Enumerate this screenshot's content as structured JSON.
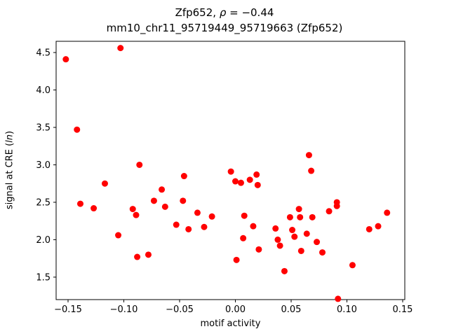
{
  "figure": {
    "title": {
      "prefix": "Zfp652, ",
      "rho": "ρ",
      "suffix": " = −0.44"
    },
    "subtitle": "mm10_chr11_95719449_95719663 (Zfp652)",
    "xlabel": "motif activity",
    "ylabel": {
      "prefix": "signal at CRE (",
      "italic": "ln",
      "suffix": ")"
    }
  },
  "chart_data": {
    "type": "scatter",
    "title": "Zfp652, ρ = −0.44",
    "subtitle": "mm10_chr11_95719449_95719663 (Zfp652)",
    "xlabel": "motif activity",
    "ylabel": "signal at CRE (ln)",
    "legend": null,
    "grid": false,
    "marker_color": "#ff0000",
    "marker_radius": 4.5,
    "xlim": [
      -0.1607,
      0.1519
    ],
    "ylim": [
      1.2,
      4.65
    ],
    "xticks": [
      -0.15,
      -0.1,
      -0.05,
      0.0,
      0.05,
      0.1,
      0.15
    ],
    "yticks": [
      1.5,
      2.0,
      2.5,
      3.0,
      3.5,
      4.0,
      4.5
    ],
    "points": [
      [
        -0.152,
        4.41
      ],
      [
        -0.142,
        3.47
      ],
      [
        -0.103,
        4.56
      ],
      [
        -0.139,
        2.48
      ],
      [
        -0.127,
        2.42
      ],
      [
        -0.117,
        2.75
      ],
      [
        -0.105,
        2.06
      ],
      [
        -0.092,
        2.41
      ],
      [
        -0.089,
        2.33
      ],
      [
        -0.086,
        3.0
      ],
      [
        -0.088,
        1.77
      ],
      [
        -0.078,
        1.8
      ],
      [
        -0.073,
        2.52
      ],
      [
        -0.066,
        2.67
      ],
      [
        -0.063,
        2.44
      ],
      [
        -0.053,
        2.2
      ],
      [
        -0.047,
        2.52
      ],
      [
        -0.046,
        2.85
      ],
      [
        -0.042,
        2.14
      ],
      [
        -0.034,
        2.36
      ],
      [
        -0.028,
        2.17
      ],
      [
        -0.021,
        2.31
      ],
      [
        -0.004,
        2.91
      ],
      [
        0.0,
        2.78
      ],
      [
        0.001,
        1.73
      ],
      [
        0.005,
        2.76
      ],
      [
        0.007,
        2.02
      ],
      [
        0.008,
        2.32
      ],
      [
        0.013,
        2.8
      ],
      [
        0.016,
        2.18
      ],
      [
        0.019,
        2.87
      ],
      [
        0.02,
        2.73
      ],
      [
        0.021,
        1.87
      ],
      [
        0.036,
        2.15
      ],
      [
        0.038,
        2.0
      ],
      [
        0.04,
        1.92
      ],
      [
        0.044,
        1.58
      ],
      [
        0.049,
        2.3
      ],
      [
        0.051,
        2.13
      ],
      [
        0.053,
        2.04
      ],
      [
        0.057,
        2.41
      ],
      [
        0.058,
        2.3
      ],
      [
        0.059,
        1.85
      ],
      [
        0.064,
        2.08
      ],
      [
        0.066,
        3.13
      ],
      [
        0.068,
        2.92
      ],
      [
        0.069,
        2.3
      ],
      [
        0.073,
        1.97
      ],
      [
        0.078,
        1.83
      ],
      [
        0.084,
        2.38
      ],
      [
        0.091,
        2.5
      ],
      [
        0.091,
        2.45
      ],
      [
        0.092,
        1.21
      ],
      [
        0.105,
        1.66
      ],
      [
        0.12,
        2.14
      ],
      [
        0.128,
        2.18
      ],
      [
        0.136,
        2.36
      ]
    ]
  }
}
